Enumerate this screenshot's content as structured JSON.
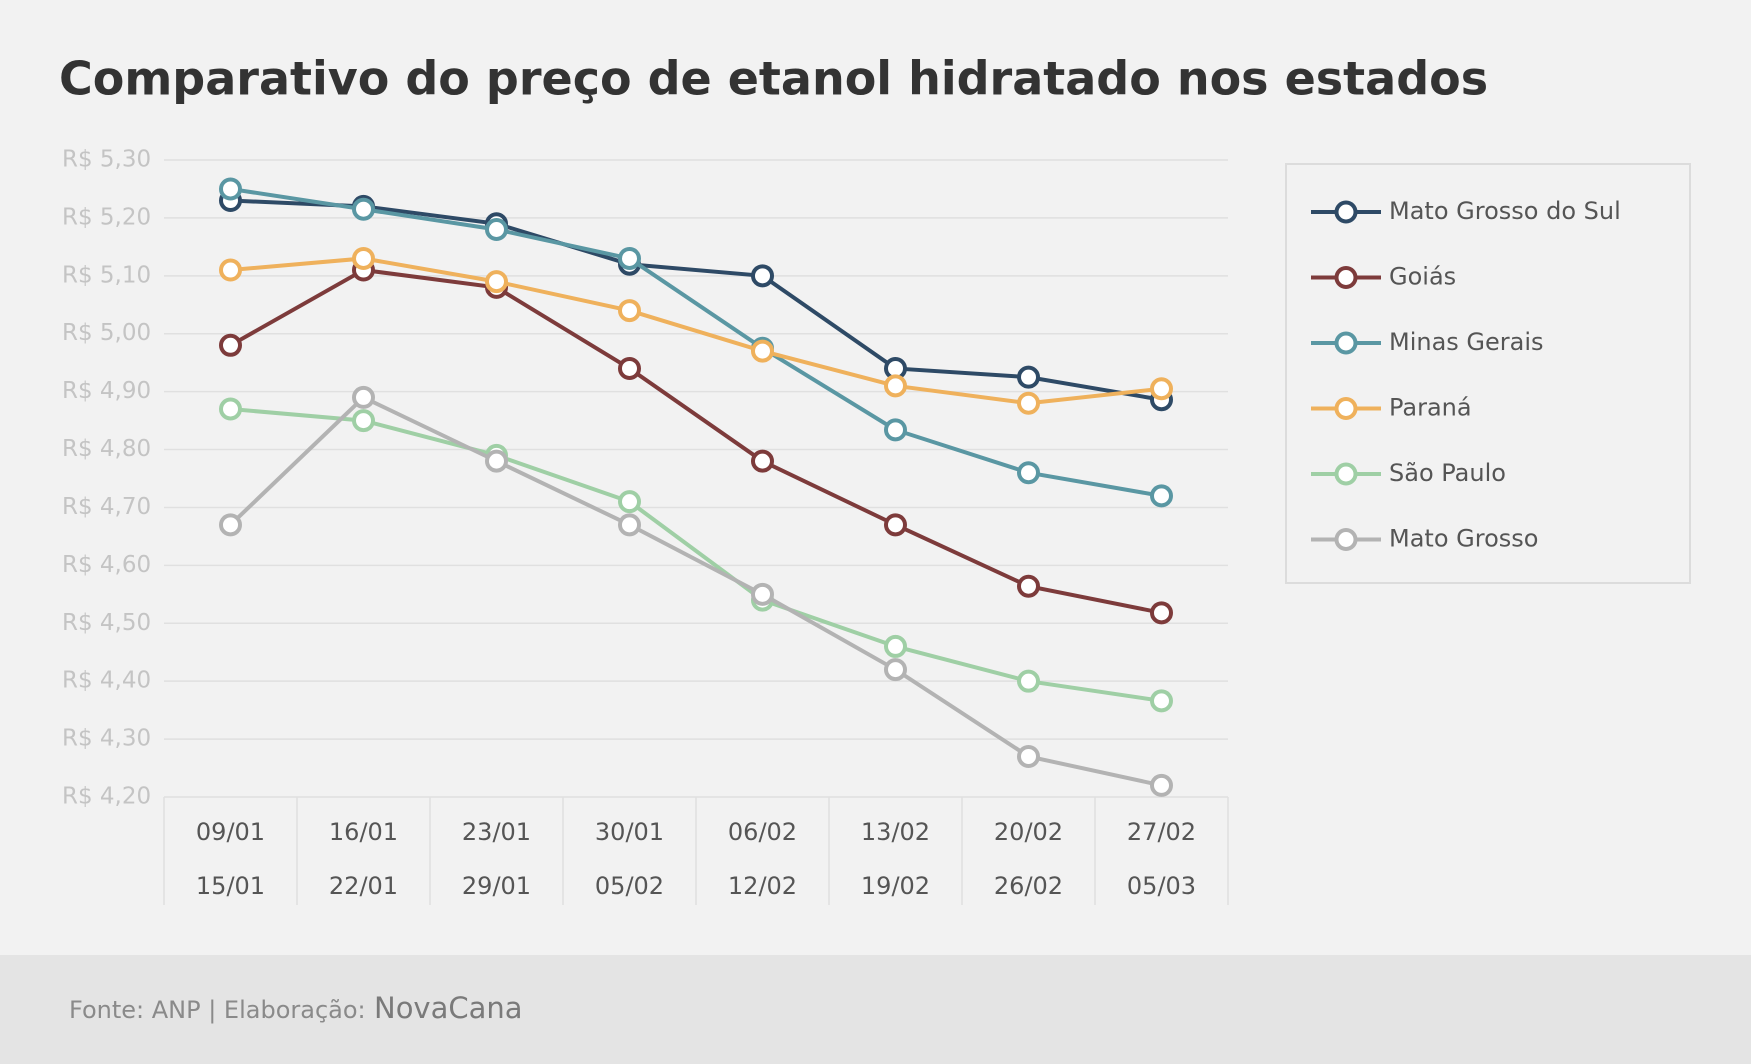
{
  "chart_data": {
    "type": "line",
    "title": "Comparativo do preço de etanol hidratado nos estados",
    "categories": [
      [
        "09/01",
        "15/01"
      ],
      [
        "16/01",
        "22/01"
      ],
      [
        "23/01",
        "29/01"
      ],
      [
        "30/01",
        "05/02"
      ],
      [
        "06/02",
        "12/02"
      ],
      [
        "13/02",
        "19/02"
      ],
      [
        "20/02",
        "26/02"
      ],
      [
        "27/02",
        "05/03"
      ]
    ],
    "series": [
      {
        "name": "Mato Grosso do Sul",
        "color": "#2e4a66",
        "values": [
          5.23,
          5.22,
          5.19,
          5.12,
          5.1,
          4.94,
          4.925,
          4.886
        ]
      },
      {
        "name": "Goiás",
        "color": "#7d3b3b",
        "values": [
          4.98,
          5.11,
          5.08,
          4.94,
          4.78,
          4.67,
          4.564,
          4.518
        ]
      },
      {
        "name": "Minas Gerais",
        "color": "#5a97a3",
        "values": [
          5.25,
          5.215,
          5.18,
          5.13,
          4.975,
          4.834,
          4.76,
          4.72
        ]
      },
      {
        "name": "Paraná",
        "color": "#efb15c",
        "values": [
          5.11,
          5.13,
          5.09,
          5.04,
          4.97,
          4.91,
          4.88,
          4.905
        ]
      },
      {
        "name": "São Paulo",
        "color": "#9fcfa5",
        "values": [
          4.87,
          4.85,
          4.79,
          4.71,
          4.54,
          4.46,
          4.4,
          4.366
        ]
      },
      {
        "name": "Mato Grosso",
        "color": "#b3b3b3",
        "values": [
          4.67,
          4.89,
          4.78,
          4.67,
          4.55,
          4.42,
          4.27,
          4.22
        ]
      }
    ],
    "ylim": [
      4.2,
      5.3
    ],
    "yticks": [
      {
        "value": 4.2,
        "label": "R$ 4,20"
      },
      {
        "value": 4.3,
        "label": "R$ 4,30"
      },
      {
        "value": 4.4,
        "label": "R$ 4,40"
      },
      {
        "value": 4.5,
        "label": "R$ 4,50"
      },
      {
        "value": 4.6,
        "label": "R$ 4,60"
      },
      {
        "value": 4.7,
        "label": "R$ 4,70"
      },
      {
        "value": 4.8,
        "label": "R$ 4,80"
      },
      {
        "value": 4.9,
        "label": "R$ 4,90"
      },
      {
        "value": 5.0,
        "label": "R$ 5,00"
      },
      {
        "value": 5.1,
        "label": "R$ 5,10"
      },
      {
        "value": 5.2,
        "label": "R$ 5,20"
      },
      {
        "value": 5.3,
        "label": "R$ 5,30"
      }
    ],
    "grid": true,
    "legend": "right",
    "source": "Fonte: ANP | Elaboração:",
    "brand": "NovaCana"
  }
}
